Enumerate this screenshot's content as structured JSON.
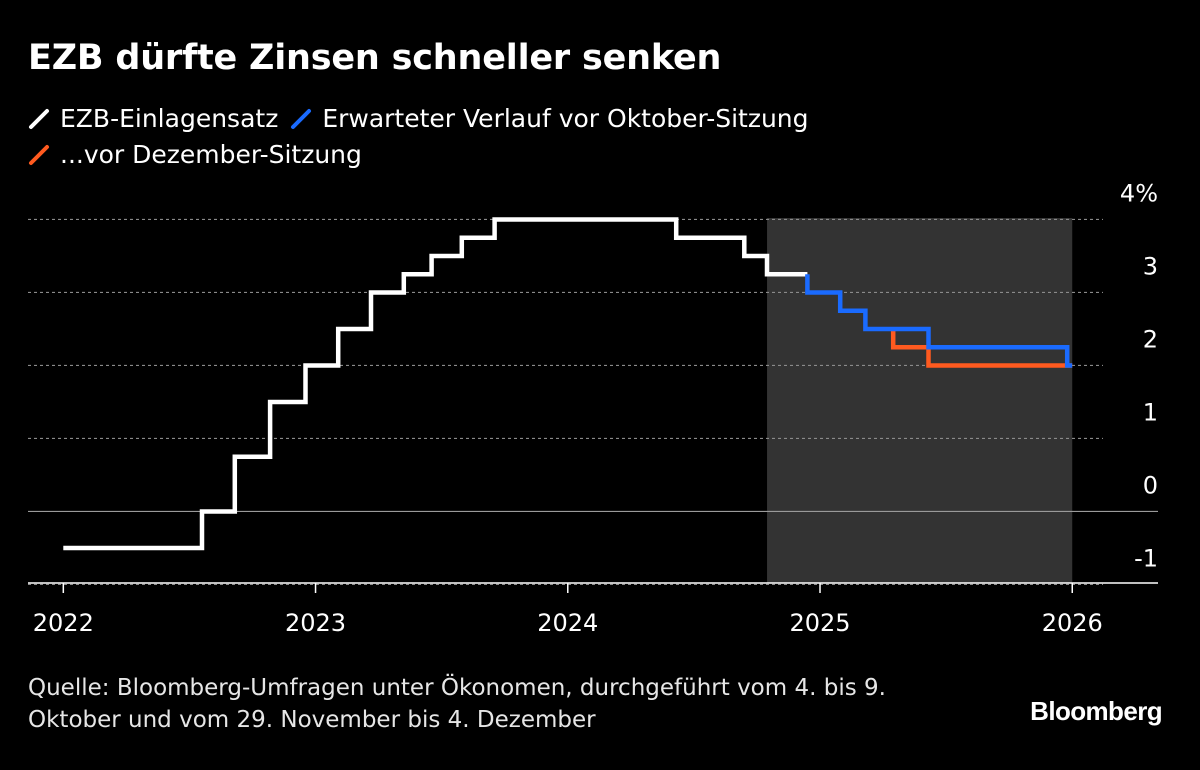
{
  "title": "EZB dürfte Zinsen schneller senken",
  "legend": [
    {
      "label": "EZB-Einlagensatz",
      "color": "#ffffff"
    },
    {
      "label": "Erwarteter Verlauf vor Oktober-Sitzung",
      "color": "#1a6bff"
    },
    {
      "label": "...vor Dezember-Sitzung",
      "color": "#ff5a1f"
    }
  ],
  "chart_data": {
    "type": "line",
    "title": "EZB dürfte Zinsen schneller senken",
    "xlabel": "",
    "ylabel": "",
    "x_ticks": [
      2022,
      2023,
      2024,
      2025,
      2026
    ],
    "y_ticks": [
      {
        "value": 4,
        "label": "4%"
      },
      {
        "value": 3,
        "label": "3"
      },
      {
        "value": 2,
        "label": "2"
      },
      {
        "value": 1,
        "label": "1"
      },
      {
        "value": 0,
        "label": "0"
      },
      {
        "value": -1,
        "label": "-1"
      }
    ],
    "xlim": [
      2021.86,
      2026.34
    ],
    "ylim": [
      -0.98,
      4.02
    ],
    "grid": true,
    "shaded_forecast_region": [
      2024.79,
      2026.0
    ],
    "series": [
      {
        "name": "EZB-Einlagensatz",
        "color": "#ffffff",
        "step": true,
        "points": [
          [
            2022.0,
            -0.5
          ],
          [
            2022.55,
            -0.5
          ],
          [
            2022.55,
            0.0
          ],
          [
            2022.68,
            0.0
          ],
          [
            2022.68,
            0.75
          ],
          [
            2022.82,
            0.75
          ],
          [
            2022.82,
            1.5
          ],
          [
            2022.96,
            1.5
          ],
          [
            2022.96,
            2.0
          ],
          [
            2023.09,
            2.0
          ],
          [
            2023.09,
            2.5
          ],
          [
            2023.22,
            2.5
          ],
          [
            2023.22,
            3.0
          ],
          [
            2023.35,
            3.0
          ],
          [
            2023.35,
            3.25
          ],
          [
            2023.46,
            3.25
          ],
          [
            2023.46,
            3.5
          ],
          [
            2023.58,
            3.5
          ],
          [
            2023.58,
            3.75
          ],
          [
            2023.71,
            3.75
          ],
          [
            2023.71,
            4.0
          ],
          [
            2024.43,
            4.0
          ],
          [
            2024.43,
            3.75
          ],
          [
            2024.7,
            3.75
          ],
          [
            2024.7,
            3.5
          ],
          [
            2024.79,
            3.5
          ],
          [
            2024.79,
            3.25
          ],
          [
            2024.95,
            3.25
          ]
        ]
      },
      {
        "name": "Erwarteter Verlauf vor Oktober-Sitzung",
        "color": "#1a6bff",
        "step": true,
        "points": [
          [
            2024.95,
            3.25
          ],
          [
            2024.95,
            3.0
          ],
          [
            2025.08,
            3.0
          ],
          [
            2025.08,
            2.75
          ],
          [
            2025.18,
            2.75
          ],
          [
            2025.18,
            2.5
          ],
          [
            2025.43,
            2.5
          ],
          [
            2025.43,
            2.25
          ],
          [
            2025.98,
            2.25
          ],
          [
            2025.98,
            2.0
          ],
          [
            2026.0,
            2.0
          ]
        ]
      },
      {
        "name": "...vor Dezember-Sitzung",
        "color": "#ff5a1f",
        "step": true,
        "points": [
          [
            2025.29,
            2.5
          ],
          [
            2025.29,
            2.25
          ],
          [
            2025.43,
            2.25
          ],
          [
            2025.43,
            2.0
          ],
          [
            2026.0,
            2.0
          ]
        ]
      }
    ]
  },
  "source": {
    "line1": "Quelle: Bloomberg-Umfragen unter Ökonomen, durchgeführt vom 4. bis 9.",
    "line2": "Oktober und vom 29. November bis 4. Dezember"
  },
  "brand": "Bloomberg"
}
